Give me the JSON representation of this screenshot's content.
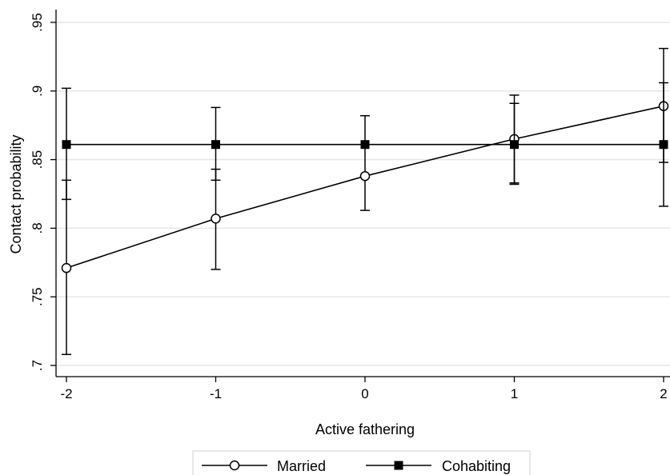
{
  "chart_data": {
    "type": "line",
    "xlabel": "Active fathering",
    "ylabel": "Contact probability",
    "x": [
      -2,
      -1,
      0,
      1,
      2
    ],
    "xticks": [
      "-2",
      "-1",
      "0",
      "1",
      "2"
    ],
    "yticks": [
      ".7",
      ".75",
      ".8",
      ".85",
      ".9",
      ".95"
    ],
    "ytick_values": [
      0.7,
      0.75,
      0.8,
      0.85,
      0.9,
      0.95
    ],
    "xlim": [
      -2,
      2
    ],
    "ylim": [
      0.7,
      0.95
    ],
    "grid": true,
    "legend_position": "bottom",
    "series": [
      {
        "name": "Married",
        "marker": "hollow-circle",
        "values": [
          0.771,
          0.807,
          0.838,
          0.865,
          0.889
        ],
        "ci_low": [
          0.708,
          0.77,
          0.813,
          0.833,
          0.848
        ],
        "ci_high": [
          0.835,
          0.843,
          0.882,
          0.897,
          0.931
        ]
      },
      {
        "name": "Cohabiting",
        "marker": "filled-square",
        "values": [
          0.861,
          0.861,
          0.861,
          0.861,
          0.861
        ],
        "ci_low": [
          0.821,
          0.835,
          0.861,
          0.832,
          0.816
        ],
        "ci_high": [
          0.902,
          0.888,
          0.861,
          0.891,
          0.906
        ]
      }
    ]
  }
}
